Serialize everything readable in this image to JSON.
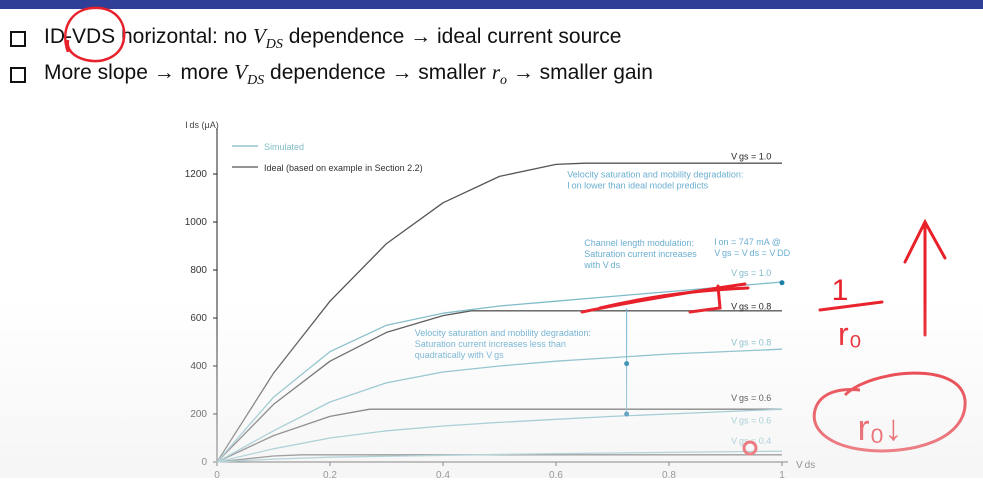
{
  "slide": {
    "bullets": [
      {
        "parts": [
          "ID-VDS horizontal: no ",
          "V",
          "DS",
          " dependence → ideal current source"
        ]
      },
      {
        "parts": [
          "More slope → more ",
          "V",
          "DS",
          " dependence → smaller ",
          "r",
          "o",
          " → smaller gain"
        ]
      }
    ]
  },
  "colors": {
    "top_bar": "#2f3f97",
    "simulated": "#7fbcc8",
    "ideal": "#555555",
    "annotation_text": "#6aaed0",
    "pen_red": "#e8202a"
  },
  "chart_data": {
    "type": "line",
    "ylabel": "I ds (μA)",
    "xlabel": "V ds",
    "xlim": [
      0,
      1.0
    ],
    "ylim": [
      0,
      1300
    ],
    "xticks": [
      "0",
      "0.2",
      "0.4",
      "0.6",
      "0.8",
      "1"
    ],
    "xtick_values": [
      0,
      0.2,
      0.4,
      0.6,
      0.8,
      1.0
    ],
    "yticks": [
      "0",
      "200",
      "400",
      "600",
      "800",
      "1000",
      "1200"
    ],
    "ytick_values": [
      0,
      200,
      400,
      600,
      800,
      1000,
      1200
    ],
    "legend": [
      {
        "label": "Simulated",
        "style": "simulated"
      },
      {
        "label": "Ideal (based on example in Section 2.2)",
        "style": "ideal"
      }
    ],
    "series": [
      {
        "style": "ideal",
        "x": [
          0,
          0.1,
          0.2,
          0.3,
          0.4,
          0.5,
          0.6,
          0.65,
          1.0
        ],
        "y": [
          0,
          370,
          670,
          910,
          1080,
          1190,
          1240,
          1245,
          1245
        ]
      },
      {
        "style": "ideal",
        "x": [
          0,
          0.1,
          0.2,
          0.3,
          0.4,
          0.45,
          1.0
        ],
        "y": [
          0,
          240,
          420,
          540,
          610,
          630,
          630
        ]
      },
      {
        "style": "ideal",
        "x": [
          0,
          0.1,
          0.2,
          0.27,
          1.0
        ],
        "y": [
          0,
          110,
          190,
          220,
          220
        ]
      },
      {
        "style": "ideal",
        "x": [
          0,
          0.1,
          0.15,
          1.0
        ],
        "y": [
          0,
          25,
          30,
          30
        ]
      },
      {
        "style": "simulated",
        "x": [
          0,
          0.1,
          0.2,
          0.3,
          0.4,
          0.5,
          0.6,
          0.7,
          0.8,
          0.9,
          1.0
        ],
        "y": [
          0,
          270,
          460,
          570,
          620,
          650,
          670,
          690,
          710,
          730,
          750
        ]
      },
      {
        "style": "simulated",
        "x": [
          0,
          0.1,
          0.2,
          0.3,
          0.4,
          0.5,
          0.6,
          0.7,
          0.8,
          0.9,
          1.0
        ],
        "y": [
          0,
          130,
          250,
          330,
          375,
          400,
          420,
          435,
          450,
          460,
          470
        ]
      },
      {
        "style": "simulated",
        "x": [
          0,
          0.1,
          0.2,
          0.3,
          0.4,
          0.5,
          0.6,
          0.7,
          0.8,
          0.9,
          1.0
        ],
        "y": [
          0,
          55,
          100,
          130,
          150,
          165,
          178,
          190,
          200,
          210,
          220
        ]
      },
      {
        "style": "simulated",
        "x": [
          0,
          0.1,
          0.2,
          0.4,
          0.6,
          0.8,
          1.0
        ],
        "y": [
          0,
          12,
          20,
          28,
          35,
          40,
          45
        ]
      }
    ],
    "curve_labels": [
      {
        "text": "V gs = 1.0",
        "x": 0.91,
        "y": 1260,
        "style": "ideal"
      },
      {
        "text": "V gs = 1.0",
        "x": 0.91,
        "y": 775,
        "style": "simulated"
      },
      {
        "text": "V gs = 0.8",
        "x": 0.91,
        "y": 635,
        "style": "ideal"
      },
      {
        "text": "V gs = 0.8",
        "x": 0.91,
        "y": 485,
        "style": "simulated"
      },
      {
        "text": "V gs = 0.6",
        "x": 0.91,
        "y": 255,
        "style": "ideal"
      },
      {
        "text": "V gs = 0.6",
        "x": 0.91,
        "y": 160,
        "style": "simulated"
      },
      {
        "text": "V gs = 0.4",
        "x": 0.91,
        "y": 75,
        "style": "simulated"
      }
    ],
    "annotations": [
      {
        "lines": [
          "Velocity saturation and mobility degradation:",
          "I on lower than ideal model predicts"
        ],
        "x": 0.62,
        "y": 1185
      },
      {
        "lines": [
          "Channel length modulation:",
          "Saturation current increases",
          "with V ds"
        ],
        "x": 0.65,
        "y": 900
      },
      {
        "lines": [
          "I on = 747 mA @",
          "V gs = V ds = V DD"
        ],
        "x": 0.88,
        "y": 905
      },
      {
        "lines": [
          "Velocity saturation and mobility degradation:",
          "Saturation current increases less than",
          "quadratically with V gs"
        ],
        "x": 0.35,
        "y": 525
      }
    ],
    "markers": [
      {
        "x": 1.0,
        "y": 747
      },
      {
        "x": 0.725,
        "y": 410
      },
      {
        "x": 0.725,
        "y": 200
      }
    ],
    "handwriting": {
      "fraction_numerator": "1",
      "fraction_denominator": "r₀",
      "circled_expression": "r₀↓"
    }
  }
}
